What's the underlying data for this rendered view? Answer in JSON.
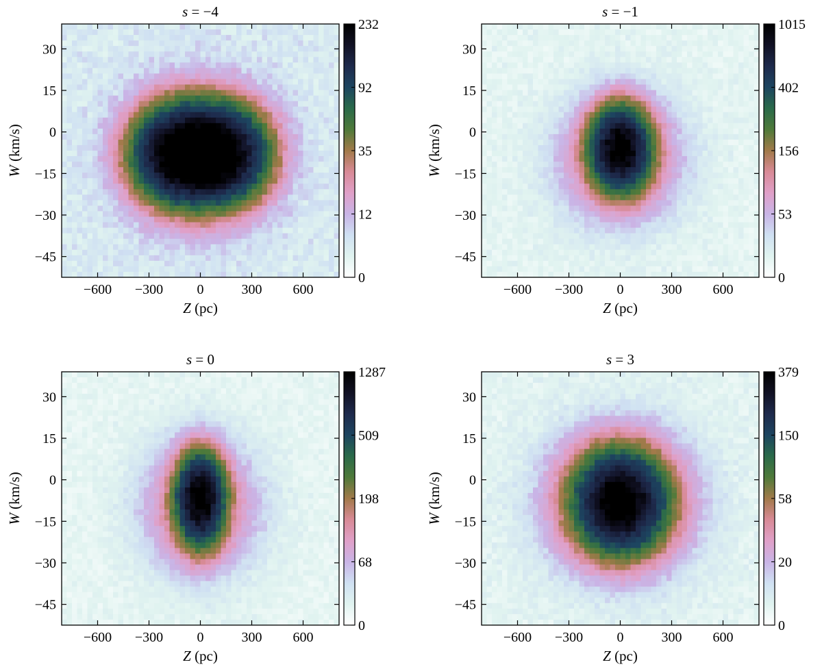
{
  "figure": {
    "description_units": "Z in pc, W in km/s"
  },
  "chart_data": [
    {
      "type": "heatmap",
      "title": "s = −4",
      "title_italic_var": "s",
      "title_rest": " = −4",
      "xlabel_var": "Z",
      "xlabel_unit": " (pc)",
      "ylabel_var": "W",
      "ylabel_unit": " (km/s)",
      "xlim": [
        -810,
        810
      ],
      "ylim": [
        -52.5,
        39
      ],
      "xticks": [
        -600,
        -300,
        0,
        300,
        600
      ],
      "xtick_labels": [
        "−600",
        "−300",
        "0",
        "300",
        "600"
      ],
      "yticks": [
        30,
        15,
        0,
        -15,
        -30,
        -45
      ],
      "ytick_labels": [
        "30",
        "15",
        "0",
        "−15",
        "−30",
        "−45"
      ],
      "colorbar": {
        "ticks": [
          0,
          12,
          35,
          92,
          232
        ],
        "max": 232,
        "scale": "sqrt-log-like"
      },
      "distribution": {
        "components": [
          {
            "z": -120,
            "w": -8,
            "sz": 230,
            "sw": 14,
            "amp": 232
          },
          {
            "z": 120,
            "w": -8,
            "sz": 230,
            "sw": 14,
            "amp": 215
          }
        ],
        "halo": {
          "z": 0,
          "w": -8,
          "sz": 330,
          "sw": 20,
          "amp": 60
        },
        "background": 6
      }
    },
    {
      "type": "heatmap",
      "title": "s = −1",
      "title_italic_var": "s",
      "title_rest": " = −1",
      "xlabel_var": "Z",
      "xlabel_unit": " (pc)",
      "ylabel_var": "W",
      "ylabel_unit": " (km/s)",
      "xlim": [
        -810,
        810
      ],
      "ylim": [
        -52.5,
        39
      ],
      "xticks": [
        -600,
        -300,
        0,
        300,
        600
      ],
      "xtick_labels": [
        "−600",
        "−300",
        "0",
        "300",
        "600"
      ],
      "yticks": [
        30,
        15,
        0,
        -15,
        -30,
        -45
      ],
      "ytick_labels": [
        "30",
        "15",
        "0",
        "−15",
        "−30",
        "−45"
      ],
      "colorbar": {
        "ticks": [
          0,
          53,
          156,
          402,
          1015
        ],
        "max": 1015,
        "scale": "sqrt-log-like"
      },
      "distribution": {
        "components": [
          {
            "z": 0,
            "w": -6,
            "sz": 150,
            "sw": 13,
            "amp": 1015
          }
        ],
        "halo": {
          "z": 0,
          "w": -10,
          "sz": 320,
          "sw": 20,
          "amp": 120
        },
        "background": 15
      }
    },
    {
      "type": "heatmap",
      "title": "s = 0",
      "title_italic_var": "s",
      "title_rest": " = 0",
      "xlabel_var": "Z",
      "xlabel_unit": " (pc)",
      "ylabel_var": "W",
      "ylabel_unit": " (km/s)",
      "xlim": [
        -810,
        810
      ],
      "ylim": [
        -52.5,
        39
      ],
      "xticks": [
        -600,
        -300,
        0,
        300,
        600
      ],
      "xtick_labels": [
        "−600",
        "−300",
        "0",
        "300",
        "600"
      ],
      "yticks": [
        30,
        15,
        0,
        -15,
        -30,
        -45
      ],
      "ytick_labels": [
        "30",
        "15",
        "0",
        "−15",
        "−30",
        "−45"
      ],
      "colorbar": {
        "ticks": [
          0,
          68,
          198,
          509,
          1287
        ],
        "max": 1287,
        "scale": "sqrt-log-like"
      },
      "distribution": {
        "components": [
          {
            "z": 0,
            "w": -7,
            "sz": 120,
            "sw": 14,
            "amp": 1287
          }
        ],
        "halo": {
          "z": 0,
          "w": -10,
          "sz": 300,
          "sw": 21,
          "amp": 150
        },
        "background": 18
      }
    },
    {
      "type": "heatmap",
      "title": "s = 3",
      "title_italic_var": "s",
      "title_rest": " = 3",
      "xlabel_var": "Z",
      "xlabel_unit": " (pc)",
      "ylabel_var": "W",
      "ylabel_unit": " (km/s)",
      "xlim": [
        -810,
        810
      ],
      "ylim": [
        -52.5,
        39
      ],
      "xticks": [
        -600,
        -300,
        0,
        300,
        600
      ],
      "xtick_labels": [
        "−600",
        "−300",
        "0",
        "300",
        "600"
      ],
      "yticks": [
        30,
        15,
        0,
        -15,
        -30,
        -45
      ],
      "ytick_labels": [
        "30",
        "15",
        "0",
        "−15",
        "−30",
        "−45"
      ],
      "colorbar": {
        "ticks": [
          0,
          20,
          58,
          150,
          379
        ],
        "max": 379,
        "scale": "sqrt-log-like"
      },
      "distribution": {
        "components": [
          {
            "z": 0,
            "w": -8,
            "sz": 220,
            "sw": 15,
            "amp": 379
          }
        ],
        "halo": {
          "z": 0,
          "w": -8,
          "sz": 360,
          "sw": 22,
          "amp": 70
        },
        "background": 6
      }
    }
  ],
  "colormap": {
    "name": "cubehelix-like",
    "stops": [
      "#ffffff",
      "#e0f3f0",
      "#cfe0f2",
      "#c9b4e6",
      "#e0a0c8",
      "#d88a96",
      "#a27a4a",
      "#4f7a3a",
      "#2a6a4a",
      "#1d4560",
      "#1e2a4c",
      "#111124",
      "#000000"
    ]
  }
}
